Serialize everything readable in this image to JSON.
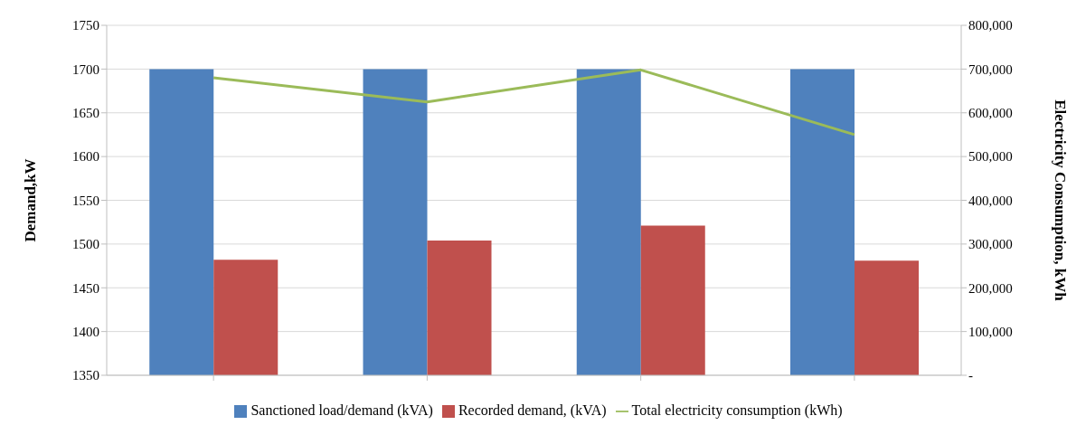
{
  "chart_data": {
    "type": "bar",
    "ylabel": "Demand,kW",
    "y2label": "Electricity Consumption, kWh",
    "categories": [
      null,
      null,
      null,
      null
    ],
    "series": [
      {
        "name": "Sanctioned load/demand (kVA)",
        "color": "#4f81bd",
        "values": [
          1700,
          1700,
          1700,
          1700
        ]
      },
      {
        "name": "Recorded demand, (kVA)",
        "color": "#c0504d",
        "values": [
          1482,
          1504,
          1521,
          1481
        ]
      },
      {
        "name": "Total electricity consumption (kWh)",
        "type": "line",
        "axis": "y2",
        "color": "#9bbb59",
        "values": [
          680000,
          625000,
          698000,
          550000
        ]
      }
    ],
    "ylim": [
      1350,
      1750
    ],
    "yticks": [
      1350,
      1400,
      1450,
      1500,
      1550,
      1600,
      1650,
      1700,
      1750
    ],
    "y2lim": [
      0,
      800000
    ],
    "y2ticks": [
      {
        "value": 0,
        "label": "-"
      },
      {
        "value": 100000,
        "label": "100,000"
      },
      {
        "value": 200000,
        "label": "200,000"
      },
      {
        "value": 300000,
        "label": "300,000"
      },
      {
        "value": 400000,
        "label": "400,000"
      },
      {
        "value": 500000,
        "label": "500,000"
      },
      {
        "value": 600000,
        "label": "600,000"
      },
      {
        "value": 700000,
        "label": "700,000"
      },
      {
        "value": 800000,
        "label": "800,000"
      }
    ],
    "grid": "y",
    "legend": "bottom",
    "marker": "none",
    "line_style": "solid"
  }
}
